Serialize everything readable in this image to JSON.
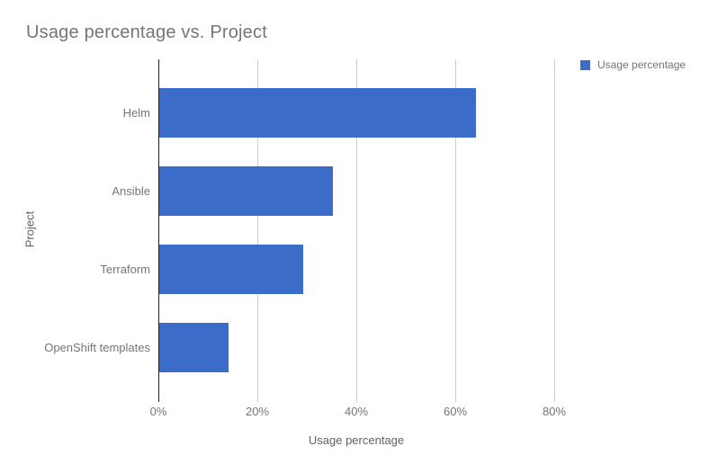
{
  "chart_data": {
    "type": "bar",
    "orientation": "horizontal",
    "title": "Usage percentage vs. Project",
    "xlabel": "Usage percentage",
    "ylabel": "Project",
    "categories": [
      "Helm",
      "Ansible",
      "Terraform",
      "OpenShift templates"
    ],
    "series": [
      {
        "name": "Usage percentage",
        "values": [
          64,
          35,
          29,
          14
        ]
      }
    ],
    "x_axis": {
      "min": 0,
      "max": 80,
      "unit": "%",
      "ticks": [
        "0%",
        "20%",
        "40%",
        "60%",
        "80%"
      ],
      "tick_values": [
        0,
        20,
        40,
        60,
        80
      ]
    },
    "legend": {
      "position": "top-right"
    },
    "grid": true,
    "colors": {
      "bar": "#3b6cc9",
      "gridline": "#cccccc",
      "axis_line": "#212121",
      "title_text": "#757575",
      "tick_text": "#757575",
      "category_text": "#757575",
      "axis_title_text": "#616161",
      "background": "#ffffff"
    }
  }
}
